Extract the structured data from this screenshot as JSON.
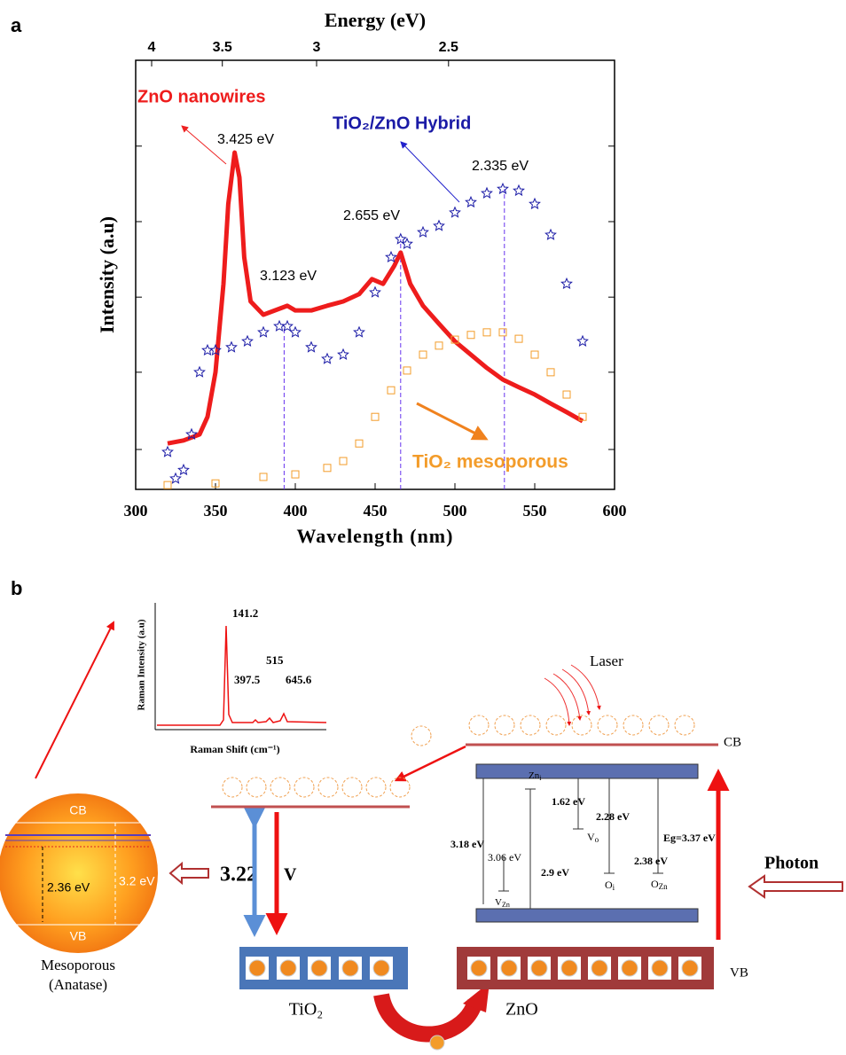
{
  "panel_labels": [
    "a",
    "b"
  ],
  "chart_data": {
    "type": "line",
    "xlabel": "Wavelength (nm)",
    "ylabel": "Intensity (a.u)",
    "x2label": "Energy (eV)",
    "xlim": [
      300,
      600
    ],
    "xticks": [
      300,
      350,
      400,
      450,
      500,
      550,
      600
    ],
    "ylim": [
      0,
      100
    ],
    "yticks": [
      9.3,
      27.3,
      44.8,
      62.4,
      80
    ],
    "x2ticks": [
      4,
      3.5,
      3,
      2.5
    ],
    "series": [
      {
        "name": "ZnO nanowires",
        "color": "#ee1c1c",
        "marker": "line",
        "x": [
          320,
          330,
          340,
          345,
          350,
          355,
          358,
          362,
          365,
          368,
          372,
          380,
          390,
          395,
          400,
          410,
          420,
          430,
          440,
          448,
          455,
          462,
          466,
          472,
          480,
          490,
          500,
          510,
          520,
          530,
          540,
          550,
          560,
          570,
          580
        ],
        "values": [
          10.7,
          11.4,
          12.8,
          16.9,
          27.3,
          47.9,
          66.5,
          78.5,
          72.7,
          54.1,
          43.8,
          40.7,
          42.1,
          42.8,
          41.7,
          41.7,
          42.8,
          43.8,
          45.5,
          49.0,
          47.9,
          52.1,
          55.2,
          47.9,
          42.8,
          38.6,
          34.5,
          31.4,
          28.3,
          25.6,
          23.8,
          22.1,
          20.0,
          18.0,
          15.9
        ]
      },
      {
        "name": "TiO₂/ZnO Hybrid",
        "color": "#1a1aa6",
        "marker": "star",
        "x": [
          320,
          325,
          330,
          335,
          340,
          345,
          350,
          360,
          370,
          380,
          390,
          395,
          400,
          410,
          420,
          430,
          440,
          450,
          460,
          466,
          470,
          480,
          490,
          500,
          510,
          520,
          530,
          540,
          550,
          560,
          570,
          580
        ],
        "values": [
          8.7,
          2.5,
          4.5,
          12.8,
          27.3,
          32.4,
          32.4,
          33.1,
          34.5,
          36.6,
          38.0,
          38.0,
          36.6,
          33.1,
          30.4,
          31.4,
          36.6,
          45.9,
          54.1,
          58.3,
          57.2,
          59.9,
          61.4,
          64.5,
          66.9,
          69.0,
          70.0,
          69.6,
          66.5,
          59.3,
          47.9,
          34.5
        ]
      },
      {
        "name": "TiO₂ mesoporous",
        "color": "#f39c2a",
        "marker": "square",
        "x": [
          320,
          350,
          380,
          400,
          420,
          430,
          440,
          450,
          460,
          470,
          480,
          490,
          500,
          510,
          520,
          530,
          540,
          550,
          560,
          570,
          580
        ],
        "values": [
          1.0,
          1.4,
          2.9,
          3.5,
          5.0,
          6.6,
          10.7,
          16.9,
          23.1,
          27.7,
          31.4,
          33.5,
          34.9,
          36.0,
          36.6,
          36.6,
          35.1,
          31.4,
          27.3,
          22.1,
          16.9
        ]
      }
    ],
    "vlines": [
      393,
      466,
      531
    ],
    "annotations": [
      "3.425 eV",
      "3.123 eV",
      "2.655 eV",
      "2.335 eV"
    ]
  },
  "diagram": {
    "raman": {
      "ylabel": "Raman Intensity (a.u)",
      "xlabel": "Raman Shift (cm⁻¹)",
      "peaks": [
        "141.2",
        "397.5",
        "515",
        "645.6"
      ]
    },
    "laser": "Laser",
    "photon": "Photon",
    "cb": "CB",
    "vb": "VB",
    "tio2": {
      "gap": "3.22",
      "unit": "V",
      "label": "TiO₂"
    },
    "anatase": {
      "cb": "CB",
      "vb": "VB",
      "left": "2.36 eV",
      "right": "3.2 eV",
      "name": [
        "Mesoporous",
        "(Anatase)"
      ]
    },
    "zno": {
      "label": "ZnO",
      "levels": [
        "3.18 eV",
        "3.06 eV",
        "2.9 eV",
        "1.62 eV",
        "2.28 eV",
        "Eg=3.37 eV",
        "2.38 eV"
      ],
      "defects": [
        {
          "main": "Zn",
          "sub": "i"
        },
        {
          "main": "V",
          "sub": "o"
        },
        {
          "main": "O",
          "sub": "i"
        },
        {
          "main": "V",
          "sub": "Zn"
        },
        {
          "main": "O",
          "sub": "Zn"
        }
      ]
    }
  }
}
